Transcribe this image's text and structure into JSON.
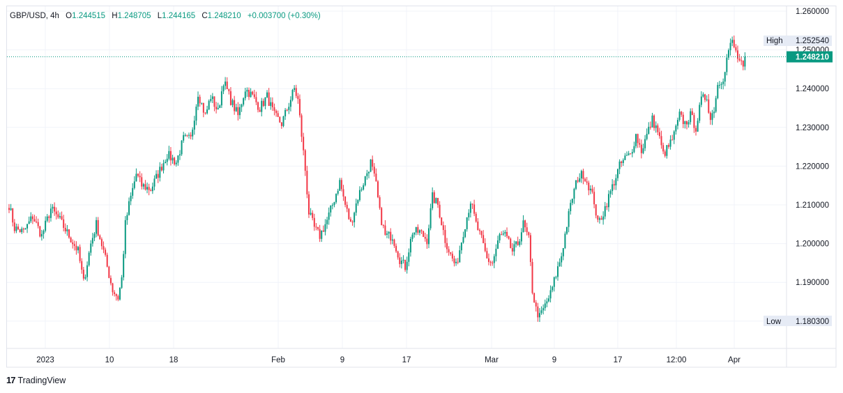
{
  "legend": {
    "symbol": "GBP/USD",
    "interval": "4h",
    "open_label": "O",
    "open": "1.244515",
    "high_label": "H",
    "high": "1.248705",
    "low_label": "L",
    "low": "1.244165",
    "close_label": "C",
    "close": "1.248210",
    "change": "+0.003700 (+0.30%)"
  },
  "price_axis": {
    "ticks": [
      "1.260000",
      "1.250000",
      "1.240000",
      "1.230000",
      "1.220000",
      "1.210000",
      "1.200000",
      "1.190000",
      "1.180000"
    ]
  },
  "time_axis": {
    "labels": [
      "2023",
      "10",
      "18",
      "Feb",
      "9",
      "17",
      "Mar",
      "9",
      "17",
      "12:00",
      "Apr"
    ]
  },
  "badges": {
    "high_label": "High",
    "high_value": "1.252540",
    "low_label": "Low",
    "low_value": "1.180300",
    "last_value": "1.248210"
  },
  "colors": {
    "up": "#089981",
    "down": "#F23645",
    "last_price": "#089981",
    "grid": "#F0F3FA"
  },
  "branding": {
    "name": "TradingView",
    "icon": "tradingview-logo-icon"
  },
  "chart_data": {
    "type": "candlestick",
    "title": "GBP/USD, 4h",
    "x_unit": "date (4h bars)",
    "ylim": [
      1.175,
      1.262
    ],
    "grid": true,
    "last_price": 1.24821,
    "period_high": 1.25254,
    "period_low": 1.1803,
    "path": [
      [
        0,
        1.21
      ],
      [
        3,
        1.204
      ],
      [
        8,
        1.203
      ],
      [
        13,
        1.207
      ],
      [
        18,
        1.202
      ],
      [
        23,
        1.209
      ],
      [
        28,
        1.206
      ],
      [
        33,
        1.202
      ],
      [
        38,
        1.198
      ],
      [
        41,
        1.19
      ],
      [
        45,
        1.2
      ],
      [
        48,
        1.205
      ],
      [
        52,
        1.198
      ],
      [
        57,
        1.188
      ],
      [
        60,
        1.186
      ],
      [
        62,
        1.191
      ],
      [
        64,
        1.205
      ],
      [
        66,
        1.21
      ],
      [
        70,
        1.218
      ],
      [
        73,
        1.215
      ],
      [
        78,
        1.214
      ],
      [
        82,
        1.218
      ],
      [
        87,
        1.223
      ],
      [
        92,
        1.221
      ],
      [
        96,
        1.227
      ],
      [
        100,
        1.227
      ],
      [
        104,
        1.239
      ],
      [
        108,
        1.233
      ],
      [
        111,
        1.238
      ],
      [
        115,
        1.234
      ],
      [
        118,
        1.242
      ],
      [
        122,
        1.237
      ],
      [
        126,
        1.233
      ],
      [
        130,
        1.24
      ],
      [
        134,
        1.238
      ],
      [
        138,
        1.235
      ],
      [
        142,
        1.238
      ],
      [
        146,
        1.233
      ],
      [
        150,
        1.231
      ],
      [
        154,
        1.236
      ],
      [
        157,
        1.24
      ],
      [
        159,
        1.237
      ],
      [
        161,
        1.228
      ],
      [
        163,
        1.219
      ],
      [
        165,
        1.208
      ],
      [
        168,
        1.204
      ],
      [
        171,
        1.202
      ],
      [
        175,
        1.206
      ],
      [
        178,
        1.21
      ],
      [
        182,
        1.216
      ],
      [
        185,
        1.21
      ],
      [
        188,
        1.205
      ],
      [
        192,
        1.212
      ],
      [
        196,
        1.217
      ],
      [
        199,
        1.221
      ],
      [
        202,
        1.215
      ],
      [
        204,
        1.208
      ],
      [
        207,
        1.202
      ],
      [
        211,
        1.202
      ],
      [
        215,
        1.196
      ],
      [
        218,
        1.194
      ],
      [
        222,
        1.203
      ],
      [
        226,
        1.203
      ],
      [
        230,
        1.201
      ],
      [
        233,
        1.212
      ],
      [
        236,
        1.21
      ],
      [
        240,
        1.201
      ],
      [
        243,
        1.197
      ],
      [
        246,
        1.194
      ],
      [
        250,
        1.203
      ],
      [
        254,
        1.211
      ],
      [
        257,
        1.205
      ],
      [
        260,
        1.201
      ],
      [
        263,
        1.196
      ],
      [
        266,
        1.195
      ],
      [
        270,
        1.202
      ],
      [
        273,
        1.202
      ],
      [
        277,
        1.198
      ],
      [
        280,
        1.2
      ],
      [
        283,
        1.205
      ],
      [
        286,
        1.201
      ],
      [
        288,
        1.188
      ],
      [
        290,
        1.183
      ],
      [
        292,
        1.181
      ],
      [
        295,
        1.184
      ],
      [
        298,
        1.187
      ],
      [
        301,
        1.192
      ],
      [
        304,
        1.197
      ],
      [
        307,
        1.205
      ],
      [
        310,
        1.212
      ],
      [
        313,
        1.217
      ],
      [
        316,
        1.218
      ],
      [
        319,
        1.215
      ],
      [
        322,
        1.211
      ],
      [
        324,
        1.205
      ],
      [
        327,
        1.208
      ],
      [
        330,
        1.212
      ],
      [
        333,
        1.216
      ],
      [
        336,
        1.22
      ],
      [
        339,
        1.222
      ],
      [
        342,
        1.223
      ],
      [
        345,
        1.228
      ],
      [
        348,
        1.224
      ],
      [
        351,
        1.228
      ],
      [
        354,
        1.232
      ],
      [
        357,
        1.229
      ],
      [
        360,
        1.223
      ],
      [
        363,
        1.225
      ],
      [
        366,
        1.228
      ],
      [
        369,
        1.233
      ],
      [
        372,
        1.231
      ],
      [
        375,
        1.233
      ],
      [
        378,
        1.23
      ],
      [
        381,
        1.237
      ],
      [
        384,
        1.238
      ],
      [
        386,
        1.232
      ],
      [
        388,
        1.235
      ],
      [
        390,
        1.241
      ],
      [
        393,
        1.243
      ],
      [
        396,
        1.25
      ],
      [
        398,
        1.252
      ],
      [
        401,
        1.248
      ],
      [
        404,
        1.245
      ],
      [
        405,
        1.2482
      ]
    ]
  }
}
